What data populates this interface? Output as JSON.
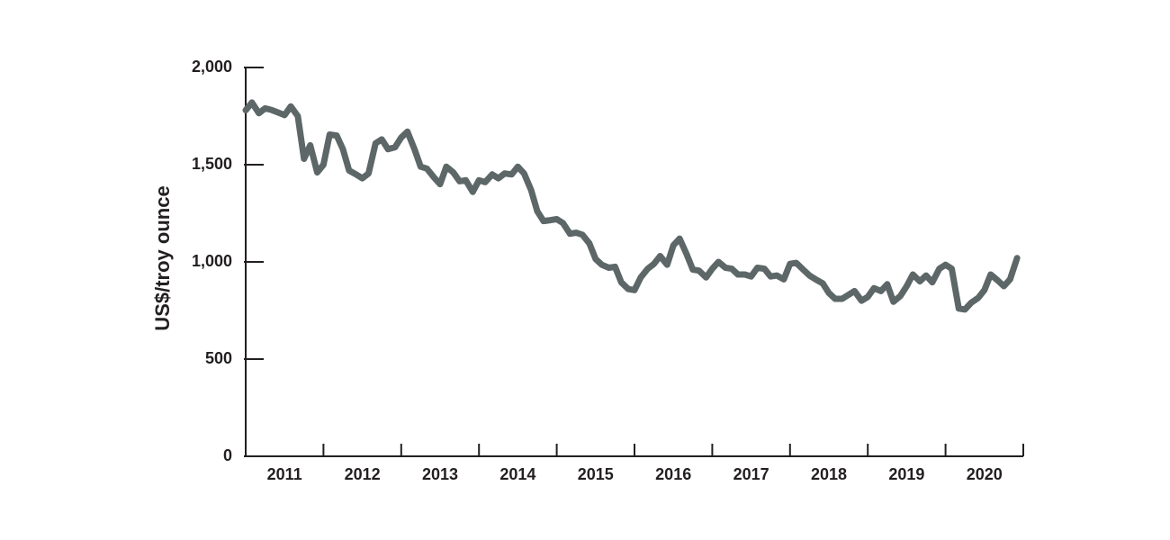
{
  "chart_data": {
    "type": "line",
    "ylabel": "US$/troy ounce",
    "xlabel": "",
    "title": "",
    "ylim": [
      0,
      2000
    ],
    "xlim": [
      2011,
      2021
    ],
    "y_ticks": [
      0,
      500,
      1000,
      1500,
      2000
    ],
    "y_tick_labels": [
      "0",
      "500",
      "1,000",
      "1,500",
      "2,000"
    ],
    "x_tick_labels": [
      "2011",
      "2012",
      "2013",
      "2014",
      "2015",
      "2016",
      "2017",
      "2018",
      "2019",
      "2020"
    ],
    "grid": false,
    "colors": {
      "line": "#5d6767",
      "axis": "#231f20"
    },
    "series": [
      {
        "x": [
          2011.0,
          2011.08,
          2011.17,
          2011.25,
          2011.33,
          2011.42,
          2011.5,
          2011.58,
          2011.67,
          2011.75,
          2011.83,
          2011.92,
          2012.0,
          2012.08,
          2012.17,
          2012.25,
          2012.33,
          2012.42,
          2012.5,
          2012.58,
          2012.67,
          2012.75,
          2012.83,
          2012.92,
          2013.0,
          2013.08,
          2013.17,
          2013.25,
          2013.33,
          2013.42,
          2013.5,
          2013.58,
          2013.67,
          2013.75,
          2013.83,
          2013.92,
          2014.0,
          2014.08,
          2014.17,
          2014.25,
          2014.33,
          2014.42,
          2014.5,
          2014.58,
          2014.67,
          2014.75,
          2014.83,
          2014.92,
          2015.0,
          2015.08,
          2015.17,
          2015.25,
          2015.33,
          2015.42,
          2015.5,
          2015.58,
          2015.67,
          2015.75,
          2015.83,
          2015.92,
          2016.0,
          2016.08,
          2016.17,
          2016.25,
          2016.33,
          2016.42,
          2016.5,
          2016.58,
          2016.67,
          2016.75,
          2016.83,
          2016.92,
          2017.0,
          2017.08,
          2017.17,
          2017.25,
          2017.33,
          2017.42,
          2017.5,
          2017.58,
          2017.67,
          2017.75,
          2017.83,
          2017.92,
          2018.0,
          2018.08,
          2018.17,
          2018.25,
          2018.33,
          2018.42,
          2018.5,
          2018.58,
          2018.67,
          2018.75,
          2018.83,
          2018.92,
          2019.0,
          2019.08,
          2019.17,
          2019.25,
          2019.33,
          2019.42,
          2019.5,
          2019.58,
          2019.67,
          2019.75,
          2019.83,
          2019.92,
          2020.0,
          2020.08,
          2020.17,
          2020.25,
          2020.33,
          2020.42,
          2020.5,
          2020.58,
          2020.67,
          2020.75,
          2020.83,
          2020.92
        ],
        "y": [
          1780,
          1820,
          1765,
          1790,
          1782,
          1768,
          1755,
          1800,
          1750,
          1530,
          1600,
          1460,
          1500,
          1655,
          1650,
          1580,
          1470,
          1450,
          1430,
          1455,
          1610,
          1630,
          1580,
          1590,
          1640,
          1670,
          1580,
          1490,
          1480,
          1435,
          1400,
          1490,
          1460,
          1415,
          1420,
          1360,
          1420,
          1410,
          1450,
          1430,
          1455,
          1450,
          1490,
          1455,
          1370,
          1260,
          1210,
          1215,
          1220,
          1200,
          1145,
          1150,
          1140,
          1095,
          1015,
          985,
          970,
          975,
          895,
          860,
          855,
          920,
          965,
          990,
          1030,
          985,
          1085,
          1120,
          1040,
          960,
          955,
          920,
          965,
          1000,
          970,
          965,
          935,
          935,
          925,
          970,
          965,
          925,
          930,
          910,
          990,
          995,
          960,
          930,
          910,
          890,
          840,
          810,
          810,
          830,
          850,
          800,
          820,
          865,
          850,
          885,
          795,
          825,
          875,
          935,
          900,
          930,
          895,
          965,
          985,
          965,
          760,
          755,
          790,
          815,
          855,
          935,
          905,
          875,
          910,
          1020
        ]
      }
    ]
  }
}
